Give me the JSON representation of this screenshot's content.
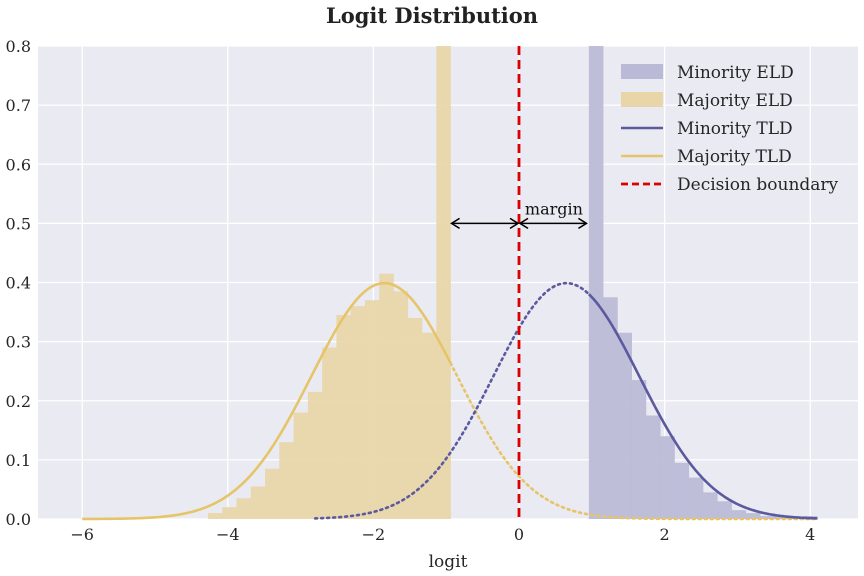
{
  "chart_data": {
    "type": "bar",
    "title": "Logit Distribution",
    "xlabel": "logit",
    "ylabel": "",
    "xlim": [
      -6.5,
      4.7
    ],
    "ylim": [
      0,
      0.8
    ],
    "xticks": [
      -6,
      -4,
      -2,
      0,
      2,
      4
    ],
    "xtick_labels": [
      "−6",
      "−4",
      "−2",
      "0",
      "2",
      "4"
    ],
    "yticks": [
      0.0,
      0.1,
      0.2,
      0.3,
      0.4,
      0.5,
      0.6,
      0.7,
      0.8
    ],
    "ytick_labels": [
      "0.0",
      "0.1",
      "0.2",
      "0.3",
      "0.4",
      "0.5",
      "0.6",
      "0.7",
      "0.8"
    ],
    "grid": true,
    "legend_position": "top-right",
    "colors": {
      "majority": "#e6c468",
      "minority": "#5b5a9e",
      "majority_fill": "#e8d6a8",
      "minority_fill": "#babad6",
      "boundary": "#dd0000",
      "background": "#eaeaf2",
      "grid": "#ffffff"
    },
    "series": [
      {
        "name": "Minority ELD",
        "kind": "histogram",
        "bin_width": 0.196,
        "bins": [
          {
            "x0": 0.96,
            "value": 0.8
          },
          {
            "x0": 1.156,
            "value": 0.375
          },
          {
            "x0": 1.352,
            "value": 0.315
          },
          {
            "x0": 1.548,
            "value": 0.235
          },
          {
            "x0": 1.744,
            "value": 0.175
          },
          {
            "x0": 1.94,
            "value": 0.14
          },
          {
            "x0": 2.136,
            "value": 0.095
          },
          {
            "x0": 2.332,
            "value": 0.07
          },
          {
            "x0": 2.528,
            "value": 0.045
          },
          {
            "x0": 2.724,
            "value": 0.03
          },
          {
            "x0": 2.92,
            "value": 0.015
          },
          {
            "x0": 3.116,
            "value": 0.01
          },
          {
            "x0": 3.312,
            "value": 0.005
          },
          {
            "x0": 3.508,
            "value": 0.004
          },
          {
            "x0": 3.704,
            "value": 0.003
          },
          {
            "x0": 3.9,
            "value": 0.005
          }
        ]
      },
      {
        "name": "Majority ELD",
        "kind": "histogram",
        "bin_width": 0.196,
        "bins": [
          {
            "x0": -4.272,
            "value": 0.01
          },
          {
            "x0": -4.076,
            "value": 0.02
          },
          {
            "x0": -3.88,
            "value": 0.035
          },
          {
            "x0": -3.684,
            "value": 0.055
          },
          {
            "x0": -3.488,
            "value": 0.085
          },
          {
            "x0": -3.292,
            "value": 0.13
          },
          {
            "x0": -3.096,
            "value": 0.18
          },
          {
            "x0": -2.9,
            "value": 0.215
          },
          {
            "x0": -2.704,
            "value": 0.29
          },
          {
            "x0": -2.508,
            "value": 0.345
          },
          {
            "x0": -2.312,
            "value": 0.36
          },
          {
            "x0": -2.116,
            "value": 0.37
          },
          {
            "x0": -1.92,
            "value": 0.415
          },
          {
            "x0": -1.724,
            "value": 0.385
          },
          {
            "x0": -1.528,
            "value": 0.34
          },
          {
            "x0": -1.332,
            "value": 0.315
          },
          {
            "x0": -1.136,
            "value": 0.8
          }
        ]
      },
      {
        "name": "Minority TLD",
        "kind": "line",
        "mean": 0.65,
        "sd": 1.0,
        "solid_from": 0.96,
        "solid_to": 4.1,
        "dotted_from": -2.8,
        "dotted_to": 0.96
      },
      {
        "name": "Majority TLD",
        "kind": "line",
        "mean": -1.85,
        "sd": 1.0,
        "solid_from": -6.0,
        "solid_to": -0.94,
        "dotted_from": -0.94,
        "dotted_to": 4.1
      },
      {
        "name": "Decision boundary",
        "kind": "vline",
        "x": 0
      }
    ],
    "annotations": [
      {
        "text": "margin",
        "x": 0.48,
        "y": 0.525
      },
      {
        "kind": "double-arrow",
        "x_from": -0.94,
        "x_to": 0,
        "y": 0.5
      },
      {
        "kind": "double-arrow",
        "x_from": 0,
        "x_to": 0.94,
        "y": 0.5
      }
    ]
  }
}
